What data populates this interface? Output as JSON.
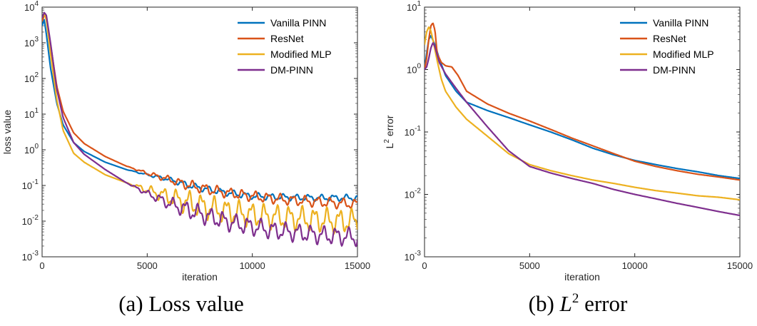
{
  "chart_data": [
    {
      "type": "line",
      "caption": "(a) Loss value",
      "xlabel": "iteration",
      "ylabel": "loss value",
      "yscale": "log",
      "xlim": [
        0,
        15000
      ],
      "ylim": [
        0.001,
        10000
      ],
      "xticks": [
        "0",
        "5000",
        "10000",
        "15000"
      ],
      "yticks": [
        "10-3",
        "10-2",
        "10-1",
        "100",
        "101",
        "102",
        "103",
        "104"
      ],
      "legend_position": "top-right",
      "series": [
        {
          "name": "Vanilla PINN",
          "color": "#0072BD",
          "x": [
            0,
            100,
            200,
            400,
            700,
            1000,
            1500,
            2000,
            3000,
            4000,
            5000,
            6000,
            7000,
            8000,
            9000,
            10000,
            11000,
            12000,
            13000,
            14000,
            15000
          ],
          "y": [
            3000,
            4500,
            1800,
            200,
            20,
            5,
            1.6,
            0.9,
            0.45,
            0.28,
            0.2,
            0.15,
            0.1,
            0.075,
            0.06,
            0.05,
            0.048,
            0.046,
            0.045,
            0.045,
            0.045
          ],
          "noise": 0.1
        },
        {
          "name": "ResNet",
          "color": "#D95319",
          "x": [
            0,
            100,
            200,
            400,
            700,
            1000,
            1500,
            2000,
            3000,
            4000,
            5000,
            6000,
            7000,
            8000,
            9000,
            10000,
            11000,
            12000,
            13000,
            14000,
            15000
          ],
          "y": [
            4000,
            6000,
            5500,
            900,
            60,
            12,
            3,
            1.5,
            0.65,
            0.35,
            0.22,
            0.15,
            0.1,
            0.075,
            0.06,
            0.05,
            0.043,
            0.038,
            0.035,
            0.032,
            0.03
          ],
          "noise": 0.16
        },
        {
          "name": "Modified MLP",
          "color": "#EDB120",
          "x": [
            0,
            100,
            200,
            400,
            700,
            1000,
            1500,
            2000,
            3000,
            4000,
            5000,
            6000,
            7000,
            8000,
            9000,
            10000,
            11000,
            12000,
            13000,
            14000,
            15000
          ],
          "y": [
            5000,
            6500,
            4500,
            500,
            25,
            3.5,
            0.8,
            0.45,
            0.2,
            0.12,
            0.075,
            0.048,
            0.032,
            0.023,
            0.018,
            0.015,
            0.013,
            0.012,
            0.011,
            0.01,
            0.01
          ],
          "noise": 0.38
        },
        {
          "name": "DM-PINN",
          "color": "#7E2F8E",
          "x": [
            0,
            100,
            200,
            400,
            700,
            1000,
            1500,
            2000,
            3000,
            4000,
            5000,
            6000,
            7000,
            8000,
            9000,
            10000,
            11000,
            12000,
            13000,
            14000,
            15000
          ],
          "y": [
            5000,
            7000,
            6000,
            1000,
            50,
            8,
            1.6,
            0.75,
            0.28,
            0.12,
            0.06,
            0.032,
            0.02,
            0.013,
            0.009,
            0.007,
            0.0055,
            0.0048,
            0.0042,
            0.0038,
            0.0035
          ],
          "noise": 0.28
        }
      ]
    },
    {
      "type": "line",
      "caption": "(b) L2 error",
      "xlabel": "iteration",
      "ylabel": "L2 error",
      "yscale": "log",
      "xlim": [
        0,
        15000
      ],
      "ylim": [
        0.001,
        10
      ],
      "xticks": [
        "0",
        "5000",
        "10000",
        "15000"
      ],
      "yticks": [
        "10-3",
        "10-2",
        "10-1",
        "100",
        "101"
      ],
      "legend_position": "top-right",
      "series": [
        {
          "name": "Vanilla PINN",
          "color": "#0072BD",
          "x": [
            0,
            100,
            200,
            300,
            500,
            700,
            1000,
            1500,
            2000,
            3000,
            4000,
            5000,
            6000,
            7000,
            8000,
            9000,
            10000,
            11000,
            12000,
            13000,
            14000,
            15000
          ],
          "y": [
            1.0,
            1.8,
            3.0,
            3.5,
            2.5,
            1.5,
            0.8,
            0.45,
            0.3,
            0.22,
            0.17,
            0.13,
            0.1,
            0.075,
            0.055,
            0.043,
            0.035,
            0.03,
            0.026,
            0.023,
            0.02,
            0.018
          ],
          "noise": 0
        },
        {
          "name": "ResNet",
          "color": "#D95319",
          "x": [
            0,
            100,
            200,
            300,
            400,
            500,
            600,
            800,
            1000,
            1300,
            1600,
            2000,
            3000,
            4000,
            5000,
            6000,
            7000,
            8000,
            9000,
            10000,
            11000,
            12000,
            13000,
            14000,
            15000
          ],
          "y": [
            1.0,
            1.5,
            3.0,
            5.0,
            5.6,
            4.2,
            1.8,
            1.3,
            1.15,
            1.1,
            0.8,
            0.45,
            0.28,
            0.2,
            0.15,
            0.11,
            0.08,
            0.06,
            0.045,
            0.034,
            0.028,
            0.024,
            0.021,
            0.019,
            0.017
          ],
          "noise": 0
        },
        {
          "name": "Modified MLP",
          "color": "#EDB120",
          "x": [
            0,
            100,
            200,
            300,
            400,
            600,
            800,
            1000,
            1500,
            2000,
            3000,
            4000,
            5000,
            6000,
            7000,
            8000,
            9000,
            10000,
            11000,
            12000,
            13000,
            14000,
            15000
          ],
          "y": [
            2.5,
            4.0,
            4.8,
            4.2,
            3.0,
            1.4,
            0.7,
            0.45,
            0.25,
            0.16,
            0.085,
            0.045,
            0.03,
            0.024,
            0.02,
            0.017,
            0.015,
            0.013,
            0.0115,
            0.0105,
            0.0095,
            0.009,
            0.0082
          ],
          "noise": 0
        },
        {
          "name": "DM-PINN",
          "color": "#7E2F8E",
          "x": [
            0,
            100,
            200,
            300,
            400,
            500,
            700,
            1000,
            1500,
            2000,
            3000,
            4000,
            5000,
            6000,
            7000,
            8000,
            9000,
            10000,
            11000,
            12000,
            13000,
            14000,
            15000
          ],
          "y": [
            1.0,
            1.1,
            1.5,
            2.2,
            2.7,
            2.3,
            1.3,
            0.85,
            0.5,
            0.3,
            0.12,
            0.05,
            0.028,
            0.022,
            0.018,
            0.015,
            0.012,
            0.01,
            0.0085,
            0.0072,
            0.0062,
            0.0053,
            0.0046
          ],
          "noise": 0
        }
      ]
    }
  ]
}
